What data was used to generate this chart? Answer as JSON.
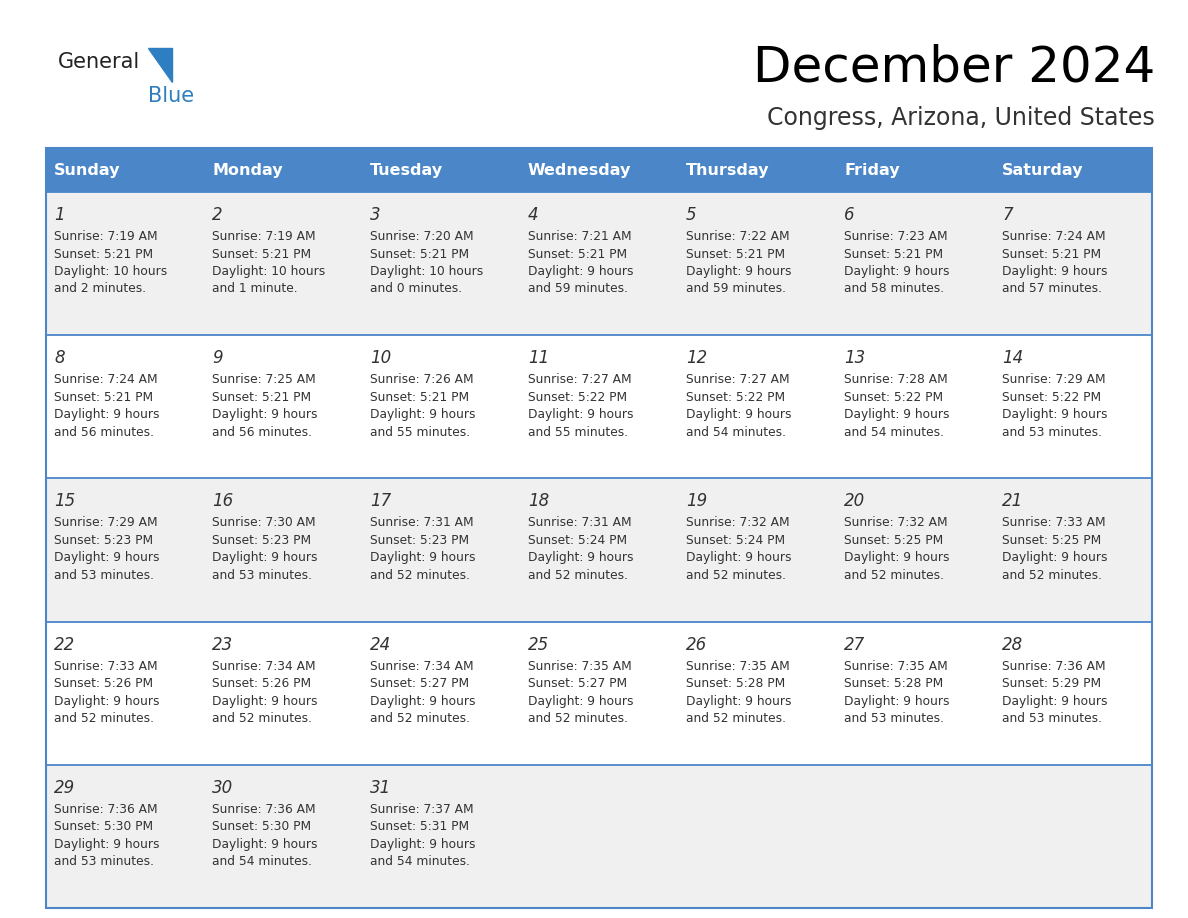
{
  "title": "December 2024",
  "subtitle": "Congress, Arizona, United States",
  "header_bg_color": "#4a86c8",
  "header_text_color": "#ffffff",
  "days_of_week": [
    "Sunday",
    "Monday",
    "Tuesday",
    "Wednesday",
    "Thursday",
    "Friday",
    "Saturday"
  ],
  "row_bg_even": "#f0f0f0",
  "row_bg_odd": "#ffffff",
  "grid_line_color": "#4a86c8",
  "day_num_color": "#333333",
  "info_text_color": "#333333",
  "calendar_data": [
    [
      {
        "day": 1,
        "sunrise": "7:19 AM",
        "sunset": "5:21 PM",
        "daylight": "10 hours",
        "daylight2": "and 2 minutes."
      },
      {
        "day": 2,
        "sunrise": "7:19 AM",
        "sunset": "5:21 PM",
        "daylight": "10 hours",
        "daylight2": "and 1 minute."
      },
      {
        "day": 3,
        "sunrise": "7:20 AM",
        "sunset": "5:21 PM",
        "daylight": "10 hours",
        "daylight2": "and 0 minutes."
      },
      {
        "day": 4,
        "sunrise": "7:21 AM",
        "sunset": "5:21 PM",
        "daylight": "9 hours",
        "daylight2": "and 59 minutes."
      },
      {
        "day": 5,
        "sunrise": "7:22 AM",
        "sunset": "5:21 PM",
        "daylight": "9 hours",
        "daylight2": "and 59 minutes."
      },
      {
        "day": 6,
        "sunrise": "7:23 AM",
        "sunset": "5:21 PM",
        "daylight": "9 hours",
        "daylight2": "and 58 minutes."
      },
      {
        "day": 7,
        "sunrise": "7:24 AM",
        "sunset": "5:21 PM",
        "daylight": "9 hours",
        "daylight2": "and 57 minutes."
      }
    ],
    [
      {
        "day": 8,
        "sunrise": "7:24 AM",
        "sunset": "5:21 PM",
        "daylight": "9 hours",
        "daylight2": "and 56 minutes."
      },
      {
        "day": 9,
        "sunrise": "7:25 AM",
        "sunset": "5:21 PM",
        "daylight": "9 hours",
        "daylight2": "and 56 minutes."
      },
      {
        "day": 10,
        "sunrise": "7:26 AM",
        "sunset": "5:21 PM",
        "daylight": "9 hours",
        "daylight2": "and 55 minutes."
      },
      {
        "day": 11,
        "sunrise": "7:27 AM",
        "sunset": "5:22 PM",
        "daylight": "9 hours",
        "daylight2": "and 55 minutes."
      },
      {
        "day": 12,
        "sunrise": "7:27 AM",
        "sunset": "5:22 PM",
        "daylight": "9 hours",
        "daylight2": "and 54 minutes."
      },
      {
        "day": 13,
        "sunrise": "7:28 AM",
        "sunset": "5:22 PM",
        "daylight": "9 hours",
        "daylight2": "and 54 minutes."
      },
      {
        "day": 14,
        "sunrise": "7:29 AM",
        "sunset": "5:22 PM",
        "daylight": "9 hours",
        "daylight2": "and 53 minutes."
      }
    ],
    [
      {
        "day": 15,
        "sunrise": "7:29 AM",
        "sunset": "5:23 PM",
        "daylight": "9 hours",
        "daylight2": "and 53 minutes."
      },
      {
        "day": 16,
        "sunrise": "7:30 AM",
        "sunset": "5:23 PM",
        "daylight": "9 hours",
        "daylight2": "and 53 minutes."
      },
      {
        "day": 17,
        "sunrise": "7:31 AM",
        "sunset": "5:23 PM",
        "daylight": "9 hours",
        "daylight2": "and 52 minutes."
      },
      {
        "day": 18,
        "sunrise": "7:31 AM",
        "sunset": "5:24 PM",
        "daylight": "9 hours",
        "daylight2": "and 52 minutes."
      },
      {
        "day": 19,
        "sunrise": "7:32 AM",
        "sunset": "5:24 PM",
        "daylight": "9 hours",
        "daylight2": "and 52 minutes."
      },
      {
        "day": 20,
        "sunrise": "7:32 AM",
        "sunset": "5:25 PM",
        "daylight": "9 hours",
        "daylight2": "and 52 minutes."
      },
      {
        "day": 21,
        "sunrise": "7:33 AM",
        "sunset": "5:25 PM",
        "daylight": "9 hours",
        "daylight2": "and 52 minutes."
      }
    ],
    [
      {
        "day": 22,
        "sunrise": "7:33 AM",
        "sunset": "5:26 PM",
        "daylight": "9 hours",
        "daylight2": "and 52 minutes."
      },
      {
        "day": 23,
        "sunrise": "7:34 AM",
        "sunset": "5:26 PM",
        "daylight": "9 hours",
        "daylight2": "and 52 minutes."
      },
      {
        "day": 24,
        "sunrise": "7:34 AM",
        "sunset": "5:27 PM",
        "daylight": "9 hours",
        "daylight2": "and 52 minutes."
      },
      {
        "day": 25,
        "sunrise": "7:35 AM",
        "sunset": "5:27 PM",
        "daylight": "9 hours",
        "daylight2": "and 52 minutes."
      },
      {
        "day": 26,
        "sunrise": "7:35 AM",
        "sunset": "5:28 PM",
        "daylight": "9 hours",
        "daylight2": "and 52 minutes."
      },
      {
        "day": 27,
        "sunrise": "7:35 AM",
        "sunset": "5:28 PM",
        "daylight": "9 hours",
        "daylight2": "and 53 minutes."
      },
      {
        "day": 28,
        "sunrise": "7:36 AM",
        "sunset": "5:29 PM",
        "daylight": "9 hours",
        "daylight2": "and 53 minutes."
      }
    ],
    [
      {
        "day": 29,
        "sunrise": "7:36 AM",
        "sunset": "5:30 PM",
        "daylight": "9 hours",
        "daylight2": "and 53 minutes."
      },
      {
        "day": 30,
        "sunrise": "7:36 AM",
        "sunset": "5:30 PM",
        "daylight": "9 hours",
        "daylight2": "and 54 minutes."
      },
      {
        "day": 31,
        "sunrise": "7:37 AM",
        "sunset": "5:31 PM",
        "daylight": "9 hours",
        "daylight2": "and 54 minutes."
      },
      null,
      null,
      null,
      null
    ]
  ],
  "fig_width": 11.88,
  "fig_height": 9.18
}
